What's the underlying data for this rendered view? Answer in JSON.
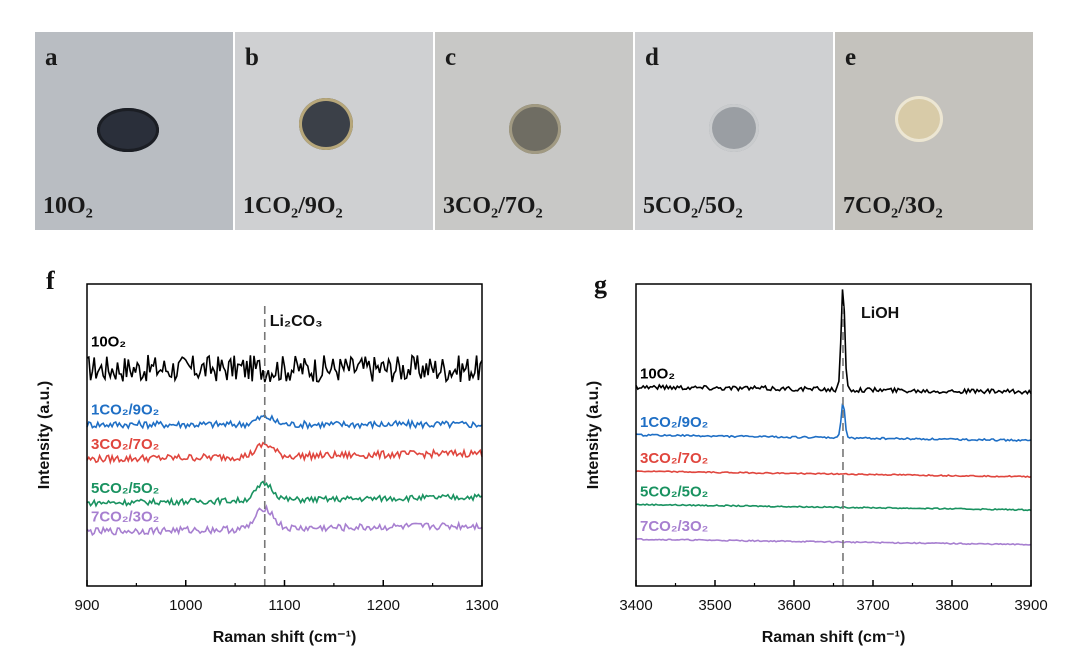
{
  "photos": [
    {
      "letter": "a",
      "condition": "10O₂",
      "bg": "#b9bdc2",
      "disc_fill": "#2a2f3a",
      "disc_rim": "#1b1e24"
    },
    {
      "letter": "b",
      "condition": "1CO₂/9O₂",
      "bg": "#cfd0d2",
      "disc_fill": "#3b4048",
      "disc_rim": "#b7a77a"
    },
    {
      "letter": "c",
      "condition": "3CO₂/7O₂",
      "bg": "#c8c8c6",
      "disc_fill": "#6f6d63",
      "disc_rim": "#a19a82"
    },
    {
      "letter": "d",
      "condition": "5CO₂/5O₂",
      "bg": "#cfd0d2",
      "disc_fill": "#9a9ea3",
      "disc_rim": "#c9cbcd"
    },
    {
      "letter": "e",
      "condition": "7CO₂/3O₂",
      "bg": "#c4c2bd",
      "disc_fill": "#d8cba8",
      "disc_rim": "#ece6d3"
    }
  ],
  "chart_data": [
    {
      "panel": "f",
      "type": "line",
      "xlabel": "Raman shift (cm⁻¹)",
      "ylabel": "Intensity (a.u.)",
      "xlim": [
        900,
        1300
      ],
      "xticks": [
        "900",
        "1000",
        "1100",
        "1200",
        "1300"
      ],
      "yticks": "none",
      "reference_line": {
        "x": 1080,
        "label": "Li₂CO₃"
      },
      "series": [
        {
          "name": "10O₂",
          "color": "#000000",
          "baseline": 0.72,
          "noise": 0.045,
          "peak_height": 0.0
        },
        {
          "name": "1CO₂/9O₂",
          "color": "#1f6fc5",
          "baseline": 0.535,
          "noise": 0.012,
          "peak_height": 0.025
        },
        {
          "name": "3CO₂/7O₂",
          "color": "#e0463e",
          "baseline": 0.42,
          "noise": 0.012,
          "peak_height": 0.04
        },
        {
          "name": "5CO₂/5O₂",
          "color": "#199260",
          "baseline": 0.275,
          "noise": 0.01,
          "peak_height": 0.055
        },
        {
          "name": "7CO₂/3O₂",
          "color": "#a77fd0",
          "baseline": 0.18,
          "noise": 0.012,
          "peak_height": 0.07
        }
      ]
    },
    {
      "panel": "g",
      "type": "line",
      "xlabel": "Raman shift (cm⁻¹)",
      "ylabel": "Intensity (a.u.)",
      "xlim": [
        3400,
        3900
      ],
      "xticks": [
        "3400",
        "3500",
        "3600",
        "3700",
        "3800",
        "3900"
      ],
      "yticks": "none",
      "reference_line": {
        "x": 3662,
        "label": "LiOH"
      },
      "series": [
        {
          "name": "10O₂",
          "color": "#000000",
          "baseline": 0.66,
          "noise": 0.008,
          "peak_height": 0.34
        },
        {
          "name": "1CO₂/9O₂",
          "color": "#1f6fc5",
          "baseline": 0.5,
          "noise": 0.003,
          "peak_height": 0.12
        },
        {
          "name": "3CO₂/7O₂",
          "color": "#e0463e",
          "baseline": 0.38,
          "noise": 0.002,
          "peak_height": 0.0
        },
        {
          "name": "5CO₂/5O₂",
          "color": "#199260",
          "baseline": 0.27,
          "noise": 0.002,
          "peak_height": 0.0
        },
        {
          "name": "7CO₂/3O₂",
          "color": "#a77fd0",
          "baseline": 0.155,
          "noise": 0.002,
          "peak_height": 0.0
        }
      ]
    }
  ]
}
